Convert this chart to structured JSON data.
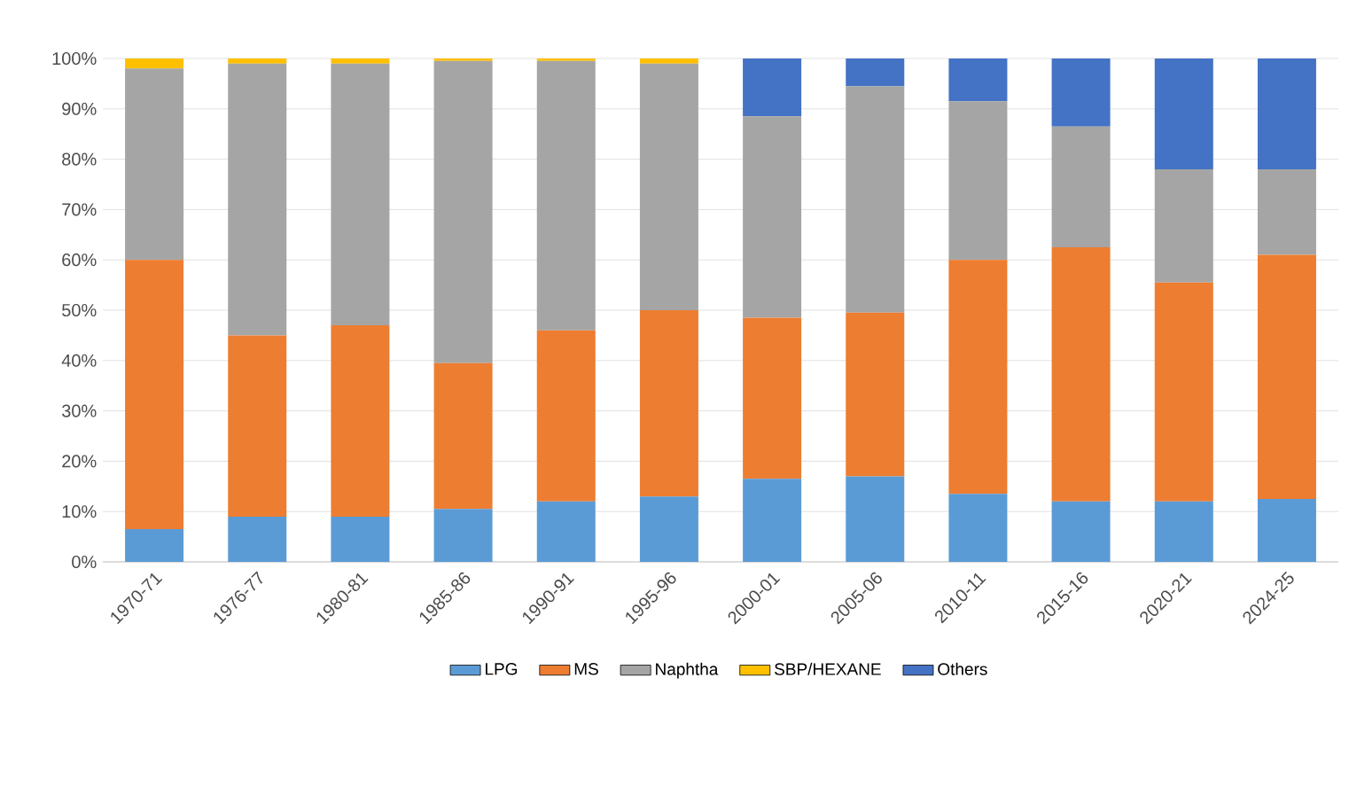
{
  "chart_data": {
    "type": "bar",
    "stacked": true,
    "categories": [
      "1970-71",
      "1976-77",
      "1980-81",
      "1985-86",
      "1990-91",
      "1995-96",
      "2000-01",
      "2005-06",
      "2010-11",
      "2015-16",
      "2020-21",
      "2024-25"
    ],
    "series": [
      {
        "name": "LPG",
        "color": "#5b9bd5",
        "values": [
          6.5,
          9,
          9,
          10.5,
          12,
          13,
          16.5,
          17,
          13.5,
          12,
          12,
          12.5
        ]
      },
      {
        "name": "MS",
        "color": "#ed7d31",
        "values": [
          53.5,
          36,
          38,
          29,
          34,
          37,
          32,
          32.5,
          46.5,
          50.5,
          43.5,
          48.5
        ]
      },
      {
        "name": "Naphtha",
        "color": "#a5a5a5",
        "values": [
          38,
          54,
          52,
          60,
          53.5,
          49,
          40,
          45,
          31.5,
          24,
          22.5,
          17
        ]
      },
      {
        "name": "SBP/HEXANE",
        "color": "#ffc000",
        "values": [
          2,
          1,
          1,
          0.5,
          0.5,
          1,
          0,
          0,
          0,
          0,
          0,
          0
        ]
      },
      {
        "name": "Others",
        "color": "#4472c4",
        "values": [
          0,
          0,
          0,
          0,
          0,
          0,
          11.5,
          5.5,
          8.5,
          13.5,
          22,
          22
        ]
      }
    ],
    "ylim": [
      0,
      100
    ],
    "yticks": [
      {
        "value": 0,
        "label": "0%"
      },
      {
        "value": 10,
        "label": "10%"
      },
      {
        "value": 20,
        "label": "20%"
      },
      {
        "value": 30,
        "label": "30%"
      },
      {
        "value": 40,
        "label": "40%"
      },
      {
        "value": 50,
        "label": "50%"
      },
      {
        "value": 60,
        "label": "60%"
      },
      {
        "value": 70,
        "label": "70%"
      },
      {
        "value": 80,
        "label": "80%"
      },
      {
        "value": 90,
        "label": "90%"
      },
      {
        "value": 100,
        "label": "100%"
      }
    ],
    "grid": "y",
    "legend": "bottom"
  }
}
